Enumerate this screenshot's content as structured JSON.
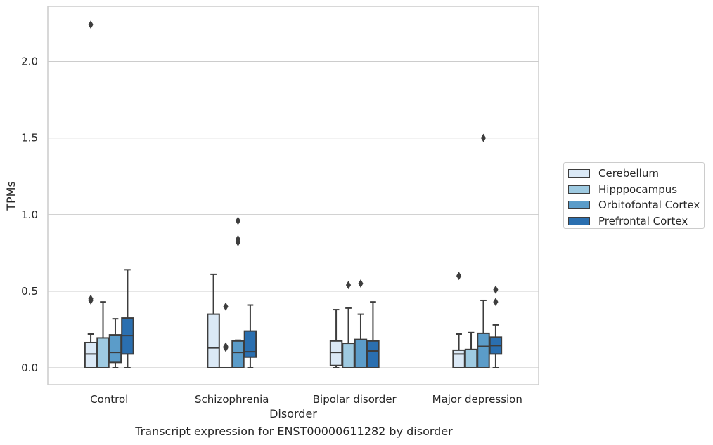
{
  "chart_data": {
    "type": "box",
    "title": "",
    "caption": "Transcript expression for ENST00000611282 by disorder",
    "xlabel": "Disorder",
    "ylabel": "TPMs",
    "ylim": [
      -0.11,
      2.36
    ],
    "yticks": [
      0.0,
      0.5,
      1.0,
      1.5,
      2.0
    ],
    "ytick_labels": [
      "0.0",
      "0.5",
      "1.0",
      "1.5",
      "2.0"
    ],
    "grid": "horizontal",
    "legend_position": "right",
    "categories": [
      "Control",
      "Schizophrenia",
      "Bipolar disorder",
      "Major depression"
    ],
    "series": [
      {
        "name": "Cerebellum",
        "color": "#dbe9f6",
        "boxes": [
          {
            "min": 0.0,
            "q1": 0.0,
            "median": 0.09,
            "q3": 0.165,
            "max": 0.22,
            "outliers": [
              2.24,
              0.45,
              0.44
            ]
          },
          {
            "min": 0.0,
            "q1": 0.0,
            "median": 0.13,
            "q3": 0.35,
            "max": 0.61,
            "outliers": []
          },
          {
            "min": 0.0,
            "q1": 0.015,
            "median": 0.1,
            "q3": 0.175,
            "max": 0.38,
            "outliers": []
          },
          {
            "min": 0.0,
            "q1": 0.0,
            "median": 0.09,
            "q3": 0.115,
            "max": 0.22,
            "outliers": [
              0.6
            ]
          }
        ]
      },
      {
        "name": "Hipppocampus",
        "color": "#9ecae1",
        "boxes": [
          {
            "min": 0.0,
            "q1": 0.0,
            "median": 0.0,
            "q3": 0.195,
            "max": 0.43,
            "outliers": []
          },
          {
            "min": 0.0,
            "q1": 0.0,
            "median": 0.0,
            "q3": 0.0,
            "max": 0.0,
            "outliers": [
              0.4,
              0.14,
              0.13
            ]
          },
          {
            "min": 0.0,
            "q1": 0.0,
            "median": 0.0,
            "q3": 0.16,
            "max": 0.39,
            "outliers": [
              0.54
            ]
          },
          {
            "min": 0.0,
            "q1": 0.0,
            "median": 0.0,
            "q3": 0.12,
            "max": 0.23,
            "outliers": []
          }
        ]
      },
      {
        "name": "Orbitofontal Cortex",
        "color": "#5b9cc9",
        "boxes": [
          {
            "min": 0.0,
            "q1": 0.035,
            "median": 0.1,
            "q3": 0.215,
            "max": 0.32,
            "outliers": []
          },
          {
            "min": 0.0,
            "q1": 0.0,
            "median": 0.1,
            "q3": 0.175,
            "max": 0.18,
            "outliers": [
              0.96,
              0.84,
              0.82
            ]
          },
          {
            "min": 0.0,
            "q1": 0.0,
            "median": 0.0,
            "q3": 0.185,
            "max": 0.35,
            "outliers": [
              0.55
            ]
          },
          {
            "min": 0.0,
            "q1": 0.0,
            "median": 0.14,
            "q3": 0.225,
            "max": 0.44,
            "outliers": [
              1.5
            ]
          }
        ]
      },
      {
        "name": "Prefrontal Cortex",
        "color": "#2a6fb0",
        "boxes": [
          {
            "min": 0.0,
            "q1": 0.09,
            "median": 0.21,
            "q3": 0.325,
            "max": 0.64,
            "outliers": []
          },
          {
            "min": 0.0,
            "q1": 0.07,
            "median": 0.105,
            "q3": 0.24,
            "max": 0.41,
            "outliers": []
          },
          {
            "min": 0.0,
            "q1": 0.0,
            "median": 0.11,
            "q3": 0.175,
            "max": 0.43,
            "outliers": []
          },
          {
            "min": 0.0,
            "q1": 0.09,
            "median": 0.145,
            "q3": 0.2,
            "max": 0.28,
            "outliers": [
              0.51,
              0.43
            ]
          }
        ]
      }
    ]
  }
}
